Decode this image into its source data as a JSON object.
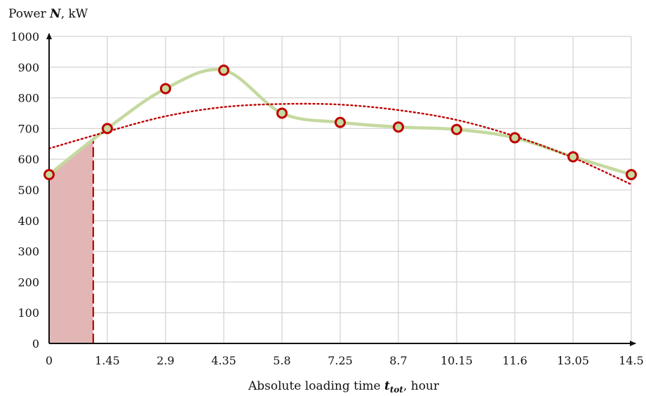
{
  "chart_data": {
    "type": "line",
    "title": "",
    "xlabel": {
      "prefix": "Absolute loading time ",
      "symbol": "t",
      "subscript": "tot",
      "suffix": ", hour"
    },
    "ylabel": {
      "prefix": "Power ",
      "symbol": "N",
      "suffix": ", kW"
    },
    "x_ticks": [
      "0",
      "1.45",
      "2.9",
      "4.35",
      "5.8",
      "7.25",
      "8.7",
      "10.15",
      "11.6",
      "13.05",
      "14.5"
    ],
    "y_ticks": [
      "0",
      "100",
      "200",
      "300",
      "400",
      "500",
      "600",
      "700",
      "800",
      "900",
      "1000"
    ],
    "xlim": [
      0,
      14.5
    ],
    "ylim": [
      0,
      1000
    ],
    "grid": true,
    "legend": "none",
    "series": [
      {
        "style": "smooth-line-with-markers",
        "color": "#c5d9a0",
        "marker_edge": "#c00000",
        "marker_fill": "#c5d9a0",
        "x": [
          0,
          1.45,
          2.9,
          4.35,
          5.8,
          7.25,
          8.7,
          10.15,
          11.6,
          13.05,
          14.5
        ],
        "y": [
          550,
          700,
          830,
          890,
          750,
          720,
          705,
          697,
          670,
          608,
          550
        ]
      },
      {
        "style": "dotted-trend",
        "color": "#c00000",
        "x": [
          0,
          1.45,
          2.9,
          4.35,
          5.8,
          7.25,
          8.7,
          10.15,
          11.6,
          13.05,
          14.5
        ],
        "y": [
          635,
          690,
          740,
          770,
          780,
          778,
          760,
          728,
          675,
          605,
          518
        ]
      }
    ],
    "shaded_region": {
      "x_start": 0,
      "x_end": 1.1,
      "color": "#e3b6b6",
      "edge_color": "#c00000"
    }
  }
}
